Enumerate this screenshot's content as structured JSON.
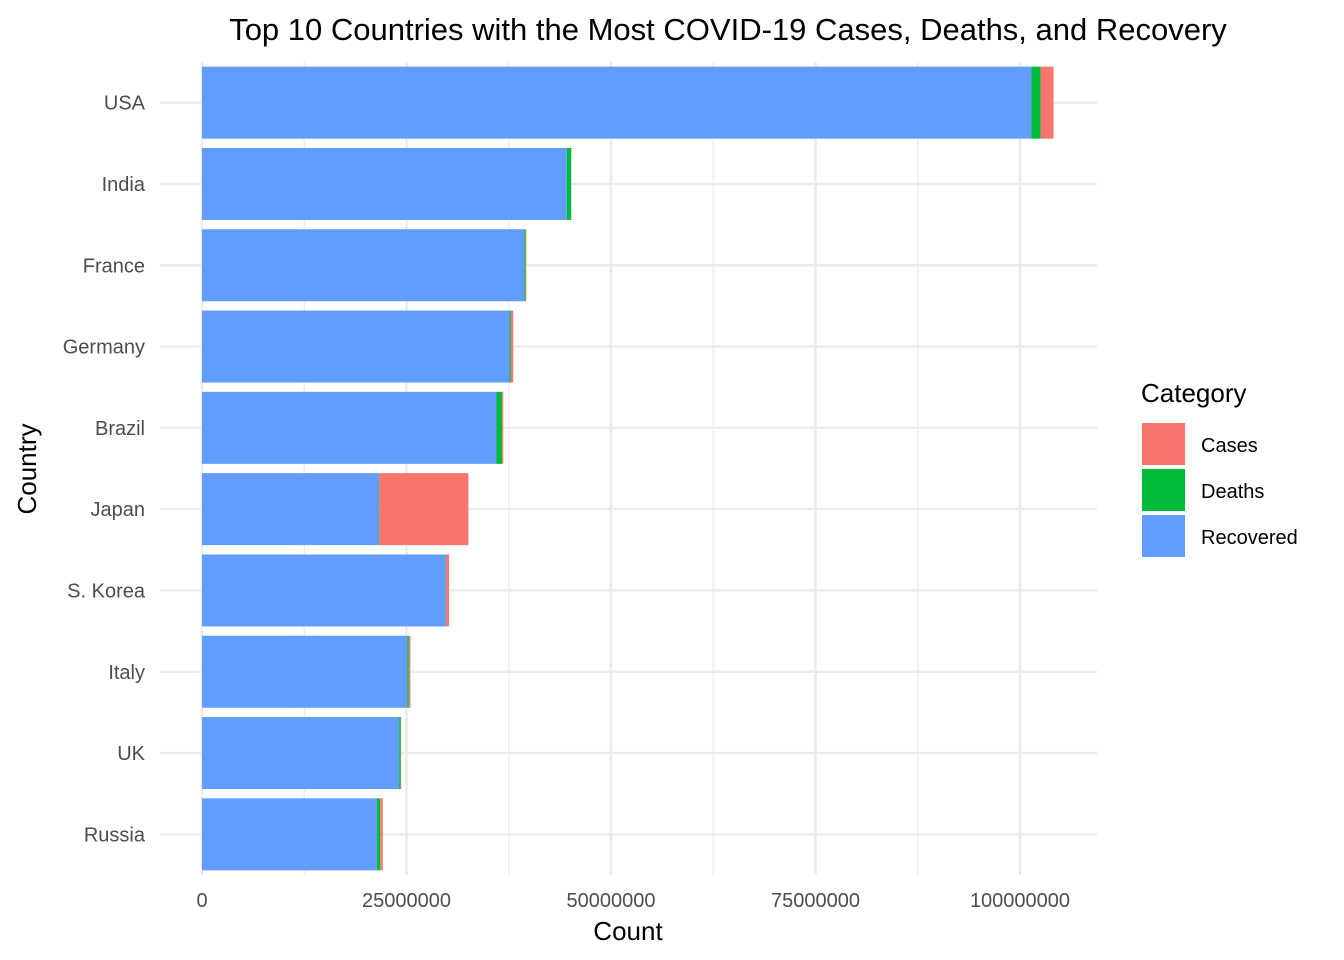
{
  "chart_data": {
    "type": "bar",
    "orientation": "horizontal",
    "stacked": true,
    "title": "Top 10 Countries with the Most COVID-19 Cases, Deaths, and Recovery",
    "xlabel": "Count",
    "ylabel": "Country",
    "xlim": [
      0,
      110000000
    ],
    "xticks": [
      0,
      25000000,
      50000000,
      75000000,
      100000000
    ],
    "xtick_labels": [
      "0",
      "25000000",
      "50000000",
      "75000000",
      "100000000"
    ],
    "grid": true,
    "legend": {
      "title": "Category",
      "position": "right",
      "entries": [
        {
          "name": "Cases",
          "color": "#F8766D"
        },
        {
          "name": "Deaths",
          "color": "#00BA38"
        },
        {
          "name": "Recovered",
          "color": "#619CFF"
        }
      ]
    },
    "categories": [
      "USA",
      "India",
      "France",
      "Germany",
      "Brazil",
      "Japan",
      "S. Korea",
      "Italy",
      "UK",
      "Russia"
    ],
    "series": [
      {
        "name": "Recovered",
        "color": "#619CFF",
        "values": [
          101400000,
          44600000,
          39400000,
          37600000,
          36000000,
          21600000,
          29800000,
          25100000,
          24100000,
          21400000
        ]
      },
      {
        "name": "Deaths",
        "color": "#00BA38",
        "values": [
          1100000,
          530000,
          160000,
          160000,
          690000,
          70000,
          34000,
          185000,
          200000,
          390000
        ]
      },
      {
        "name": "Cases",
        "color": "#F8766D",
        "values": [
          1600000,
          10000,
          80000,
          290000,
          140000,
          10900000,
          366000,
          182000,
          50000,
          310000
        ]
      }
    ]
  }
}
